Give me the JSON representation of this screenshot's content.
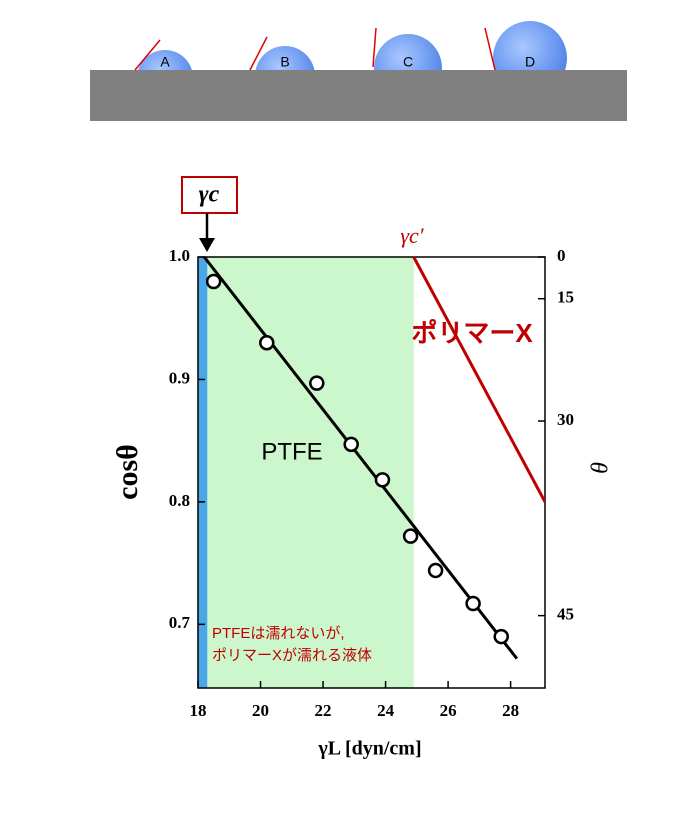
{
  "diagram": {
    "labels": [
      "A",
      "B",
      "C",
      "D"
    ]
  },
  "chart_data": {
    "type": "scatter",
    "x_label": "γL [dyn/cm]",
    "y_label": "cosθ",
    "y2_label": "θ",
    "annotations": {
      "gamma_c": "γc",
      "gamma_c_prime": "γc′",
      "ptfe": "PTFE",
      "note": [
        "PTFEは濡れないが,",
        "ポリマーXが濡れる液体"
      ]
    },
    "xlim": [
      18,
      29.1
    ],
    "ylim": [
      0.648,
      1.0
    ],
    "y2lim": [
      0,
      49.6
    ],
    "xticks": [
      18,
      20,
      22,
      24,
      26,
      28
    ],
    "yticks": [
      0.7,
      0.8,
      0.9,
      {
        "value": 1,
        "label": "1.0"
      }
    ],
    "y2ticks": [
      0,
      15,
      30,
      45
    ],
    "bands": [
      {
        "x": [
          18,
          18.3
        ],
        "color": "#4aa8e8"
      },
      {
        "x": [
          18.3,
          24.9
        ],
        "color": "#ccf7cc"
      }
    ],
    "series": [
      {
        "x": [
          18.5,
          20.2,
          21.8,
          22.9,
          23.9,
          24.8,
          25.6,
          26.8,
          27.7
        ],
        "values": [
          0.98,
          0.93,
          0.897,
          0.847,
          0.818,
          0.772,
          0.744,
          0.717,
          0.69
        ],
        "color": "#000000"
      }
    ],
    "lines": [
      {
        "x": [
          18.2,
          28.2
        ],
        "values": [
          1.0,
          0.672
        ],
        "color": "#000000"
      },
      {
        "name": "ポリマーX",
        "x": [
          24.9,
          29.1
        ],
        "values": [
          1.0,
          0.8
        ],
        "color": "#c00000"
      }
    ]
  }
}
